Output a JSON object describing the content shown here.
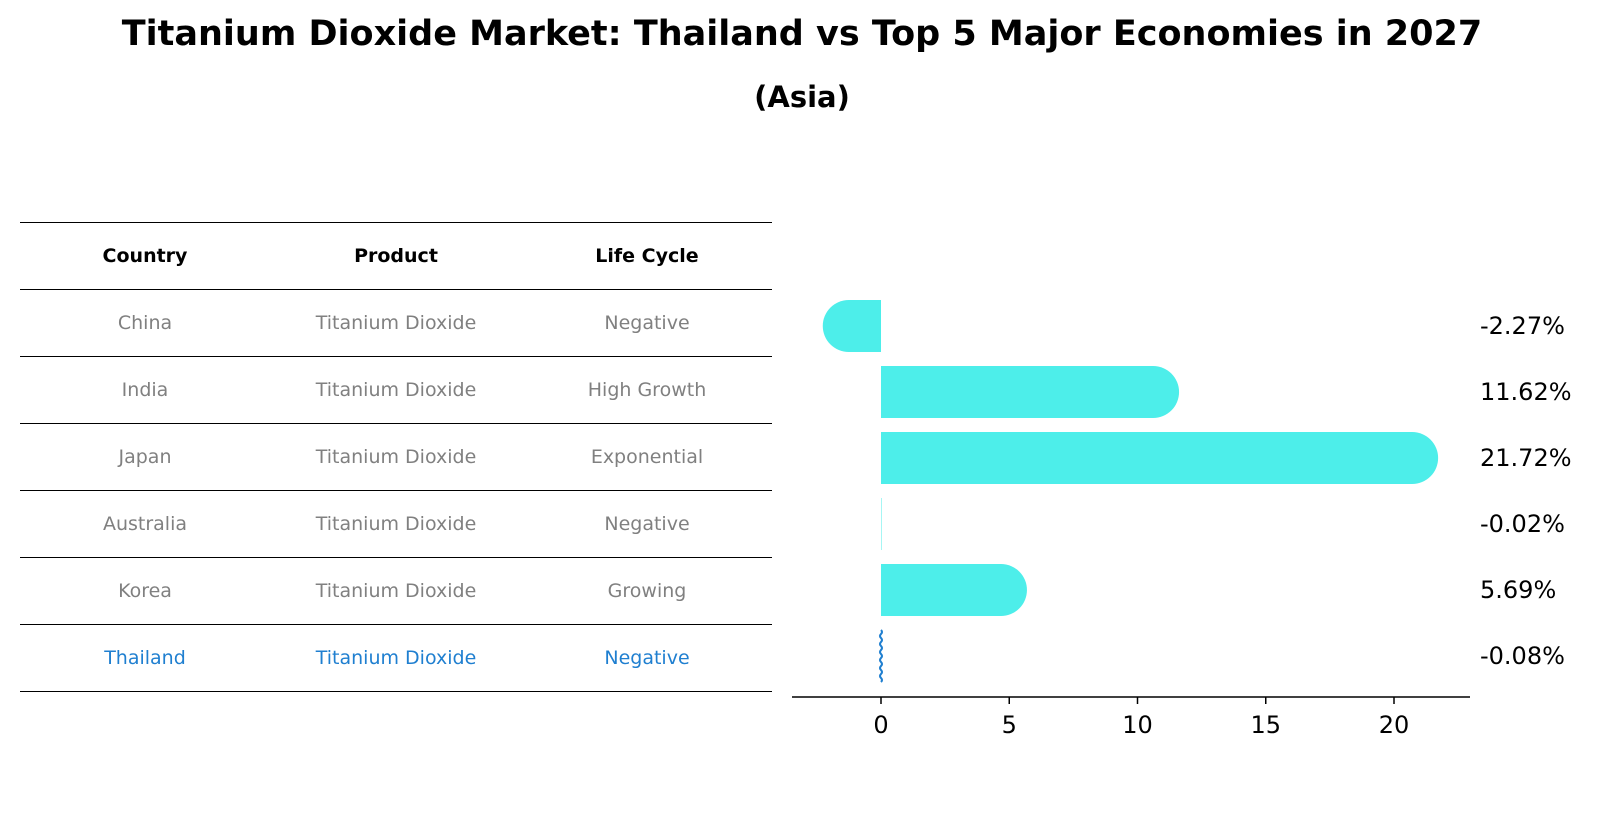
{
  "title": "Titanium Dioxide Market: Thailand vs Top 5 Major Economies in 2027",
  "subtitle": "(Asia)",
  "table": {
    "headers": [
      "Country",
      "Product",
      "Life Cycle"
    ],
    "rows": [
      {
        "country": "China",
        "product": "Titanium Dioxide",
        "life_cycle": "Negative"
      },
      {
        "country": "India",
        "product": "Titanium Dioxide",
        "life_cycle": "High Growth"
      },
      {
        "country": "Japan",
        "product": "Titanium Dioxide",
        "life_cycle": "Exponential"
      },
      {
        "country": "Australia",
        "product": "Titanium Dioxide",
        "life_cycle": "Negative"
      },
      {
        "country": "Korea",
        "product": "Titanium Dioxide",
        "life_cycle": "Growing"
      },
      {
        "country": "Thailand",
        "product": "Titanium Dioxide",
        "life_cycle": "Negative"
      }
    ]
  },
  "colors": {
    "bar": "#4deeea",
    "highlight": "#1f7fd0",
    "muted_text": "#808080"
  },
  "chart_data": {
    "type": "bar",
    "orientation": "horizontal",
    "categories": [
      "China",
      "India",
      "Japan",
      "Australia",
      "Korea",
      "Thailand"
    ],
    "values": [
      -2.27,
      11.62,
      21.72,
      -0.02,
      5.69,
      -0.08
    ],
    "value_labels": [
      "-2.27%",
      "11.62%",
      "21.72%",
      "-0.02%",
      "5.69%",
      "-0.08%"
    ],
    "xlim": [
      -3.5,
      23
    ],
    "xticks": [
      0,
      5,
      10,
      15,
      20
    ],
    "xtick_labels": [
      "0",
      "5",
      "10",
      "15",
      "20"
    ],
    "highlight_category": "Thailand",
    "grid": false
  }
}
